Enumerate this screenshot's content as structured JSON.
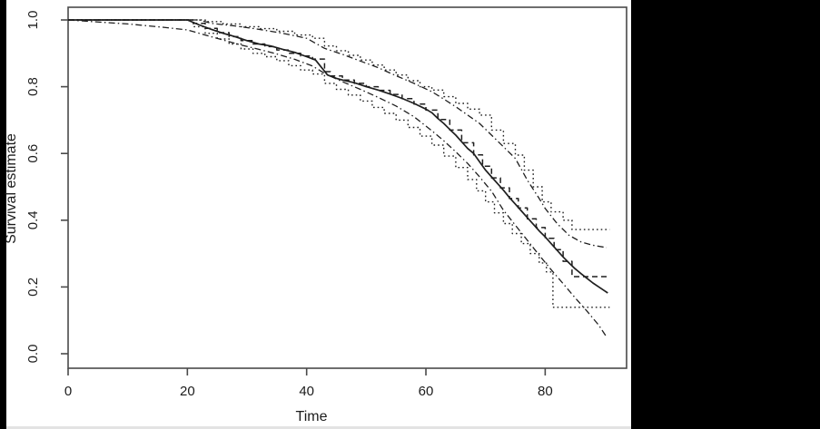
{
  "figure": {
    "background": "#ffffff",
    "left_bar_color": "#000000",
    "right_panel_color": "#000000",
    "line_color": "#1f1f1f",
    "box_color": "#4a4a4a"
  },
  "chart_data": {
    "type": "line",
    "title": "",
    "xlabel": "Time",
    "ylabel": "Survival estimate",
    "xlim": [
      0,
      93.6
    ],
    "ylim": [
      -0.04,
      1.04
    ],
    "grid": false,
    "legend": "none",
    "x_ticks": [
      {
        "value": 0,
        "label": "0"
      },
      {
        "value": 20,
        "label": "20"
      },
      {
        "value": 40,
        "label": "40"
      },
      {
        "value": 60,
        "label": "60"
      },
      {
        "value": 80,
        "label": "80"
      }
    ],
    "y_ticks": [
      {
        "value": 1.0,
        "label": "1.0"
      },
      {
        "value": 0.8,
        "label": "0.8"
      },
      {
        "value": 0.6,
        "label": "0.6"
      },
      {
        "value": 0.4,
        "label": "0.4"
      },
      {
        "value": 0.2,
        "label": "0.2"
      },
      {
        "value": 0.0,
        "label": "0.0"
      }
    ],
    "series": [
      {
        "name": "survival-estimate-smooth",
        "linetype": "solid",
        "interpolation": "linear",
        "points": [
          [
            0,
            1
          ],
          [
            20,
            1
          ],
          [
            22,
            0.985
          ],
          [
            24,
            0.972
          ],
          [
            26,
            0.96
          ],
          [
            28,
            0.95
          ],
          [
            30,
            0.938
          ],
          [
            32,
            0.928
          ],
          [
            34,
            0.922
          ],
          [
            36,
            0.912
          ],
          [
            38,
            0.903
          ],
          [
            40,
            0.89
          ],
          [
            41.5,
            0.88
          ],
          [
            43.5,
            0.835
          ],
          [
            45,
            0.825
          ],
          [
            46,
            0.82
          ],
          [
            48,
            0.812
          ],
          [
            50,
            0.8
          ],
          [
            52,
            0.79
          ],
          [
            54,
            0.778
          ],
          [
            56,
            0.765
          ],
          [
            58,
            0.75
          ],
          [
            60,
            0.733
          ],
          [
            61,
            0.722
          ],
          [
            62,
            0.705
          ],
          [
            63,
            0.69
          ],
          [
            64,
            0.672
          ],
          [
            65,
            0.655
          ],
          [
            66,
            0.635
          ],
          [
            67,
            0.615
          ],
          [
            68,
            0.6
          ],
          [
            69,
            0.575
          ],
          [
            70,
            0.55
          ],
          [
            71,
            0.53
          ],
          [
            72,
            0.51
          ],
          [
            73,
            0.49
          ],
          [
            74,
            0.468
          ],
          [
            75,
            0.448
          ],
          [
            76,
            0.428
          ],
          [
            77,
            0.408
          ],
          [
            78,
            0.388
          ],
          [
            79,
            0.368
          ],
          [
            80,
            0.35
          ],
          [
            81,
            0.33
          ],
          [
            82,
            0.31
          ],
          [
            83,
            0.29
          ],
          [
            84,
            0.272
          ],
          [
            85,
            0.255
          ],
          [
            86,
            0.24
          ],
          [
            87,
            0.226
          ],
          [
            88,
            0.212
          ],
          [
            89,
            0.2
          ],
          [
            90,
            0.188
          ],
          [
            90.5,
            0.182
          ]
        ]
      },
      {
        "name": "survival-estimate-step",
        "linetype": "dashed",
        "interpolation": "step",
        "points": [
          [
            0,
            1
          ],
          [
            21,
            0.99
          ],
          [
            23,
            0.975
          ],
          [
            25,
            0.962
          ],
          [
            27,
            0.95
          ],
          [
            29,
            0.938
          ],
          [
            31,
            0.928
          ],
          [
            33,
            0.92
          ],
          [
            35,
            0.91
          ],
          [
            37,
            0.9
          ],
          [
            39,
            0.892
          ],
          [
            41,
            0.883
          ],
          [
            43,
            0.845
          ],
          [
            44,
            0.832
          ],
          [
            46,
            0.82
          ],
          [
            48,
            0.81
          ],
          [
            50,
            0.8
          ],
          [
            52,
            0.789
          ],
          [
            54,
            0.777
          ],
          [
            56,
            0.764
          ],
          [
            58,
            0.748
          ],
          [
            60,
            0.73
          ],
          [
            62,
            0.702
          ],
          [
            64,
            0.67
          ],
          [
            66,
            0.632
          ],
          [
            68,
            0.596
          ],
          [
            69.5,
            0.562
          ],
          [
            71,
            0.527
          ],
          [
            72.5,
            0.497
          ],
          [
            74,
            0.465
          ],
          [
            75.5,
            0.437
          ],
          [
            77,
            0.404
          ],
          [
            78.5,
            0.378
          ],
          [
            80,
            0.346
          ],
          [
            81.5,
            0.312
          ],
          [
            83,
            0.277
          ],
          [
            84.5,
            0.231
          ],
          [
            90.5,
            0.231
          ]
        ]
      },
      {
        "name": "ci-upper-step",
        "linetype": "dotted",
        "interpolation": "step",
        "points": [
          [
            0,
            1
          ],
          [
            23,
            0.995
          ],
          [
            26,
            0.988
          ],
          [
            29,
            0.98
          ],
          [
            32,
            0.974
          ],
          [
            35,
            0.966
          ],
          [
            38,
            0.955
          ],
          [
            41,
            0.945
          ],
          [
            43,
            0.922
          ],
          [
            45,
            0.908
          ],
          [
            47,
            0.894
          ],
          [
            49,
            0.88
          ],
          [
            51,
            0.865
          ],
          [
            53,
            0.85
          ],
          [
            55,
            0.835
          ],
          [
            57,
            0.818
          ],
          [
            59,
            0.8
          ],
          [
            61,
            0.79
          ],
          [
            63,
            0.77
          ],
          [
            65,
            0.75
          ],
          [
            67,
            0.733
          ],
          [
            69,
            0.715
          ],
          [
            71,
            0.67
          ],
          [
            73,
            0.63
          ],
          [
            75,
            0.595
          ],
          [
            76.5,
            0.55
          ],
          [
            78,
            0.5
          ],
          [
            79.5,
            0.455
          ],
          [
            81,
            0.425
          ],
          [
            83,
            0.4
          ],
          [
            84.5,
            0.372
          ],
          [
            90.8,
            0.372
          ]
        ]
      },
      {
        "name": "ci-lower-step",
        "linetype": "dotted",
        "interpolation": "step",
        "points": [
          [
            0,
            1
          ],
          [
            21,
            0.98
          ],
          [
            23,
            0.96
          ],
          [
            25,
            0.943
          ],
          [
            27,
            0.928
          ],
          [
            29,
            0.913
          ],
          [
            31,
            0.9
          ],
          [
            33,
            0.89
          ],
          [
            35,
            0.878
          ],
          [
            37,
            0.863
          ],
          [
            39,
            0.85
          ],
          [
            41,
            0.838
          ],
          [
            43,
            0.81
          ],
          [
            45,
            0.792
          ],
          [
            47,
            0.775
          ],
          [
            49,
            0.757
          ],
          [
            51,
            0.738
          ],
          [
            53,
            0.72
          ],
          [
            55,
            0.7
          ],
          [
            57,
            0.678
          ],
          [
            59,
            0.652
          ],
          [
            61,
            0.625
          ],
          [
            63,
            0.592
          ],
          [
            65,
            0.558
          ],
          [
            67,
            0.522
          ],
          [
            68.5,
            0.488
          ],
          [
            70,
            0.455
          ],
          [
            71.5,
            0.422
          ],
          [
            73,
            0.39
          ],
          [
            74.5,
            0.36
          ],
          [
            76,
            0.33
          ],
          [
            77.5,
            0.3
          ],
          [
            79,
            0.272
          ],
          [
            80.2,
            0.245
          ],
          [
            81.3,
            0.139
          ],
          [
            90.8,
            0.139
          ]
        ]
      },
      {
        "name": "ci-upper-smooth",
        "linetype": "dashdot",
        "interpolation": "linear",
        "points": [
          [
            0,
            1
          ],
          [
            22,
            1
          ],
          [
            24,
            0.99
          ],
          [
            28,
            0.982
          ],
          [
            32,
            0.972
          ],
          [
            36,
            0.96
          ],
          [
            40,
            0.945
          ],
          [
            43,
            0.915
          ],
          [
            46,
            0.897
          ],
          [
            49,
            0.877
          ],
          [
            52,
            0.857
          ],
          [
            55,
            0.833
          ],
          [
            58,
            0.81
          ],
          [
            61,
            0.785
          ],
          [
            63,
            0.763
          ],
          [
            65,
            0.74
          ],
          [
            67,
            0.715
          ],
          [
            69,
            0.69
          ],
          [
            71,
            0.655
          ],
          [
            73,
            0.62
          ],
          [
            75,
            0.585
          ],
          [
            77,
            0.52
          ],
          [
            79,
            0.465
          ],
          [
            80,
            0.435
          ],
          [
            82,
            0.39
          ],
          [
            84,
            0.355
          ],
          [
            86,
            0.335
          ],
          [
            88,
            0.325
          ],
          [
            90.3,
            0.318
          ]
        ]
      },
      {
        "name": "ci-lower-smooth",
        "linetype": "dashdot",
        "interpolation": "linear",
        "points": [
          [
            0,
            1
          ],
          [
            4,
            0.995
          ],
          [
            10,
            0.988
          ],
          [
            16,
            0.978
          ],
          [
            20,
            0.97
          ],
          [
            23,
            0.955
          ],
          [
            26,
            0.94
          ],
          [
            29,
            0.925
          ],
          [
            32,
            0.912
          ],
          [
            35,
            0.898
          ],
          [
            38,
            0.882
          ],
          [
            41,
            0.862
          ],
          [
            43,
            0.84
          ],
          [
            46,
            0.815
          ],
          [
            49,
            0.792
          ],
          [
            52,
            0.768
          ],
          [
            55,
            0.742
          ],
          [
            58,
            0.71
          ],
          [
            61,
            0.668
          ],
          [
            63,
            0.638
          ],
          [
            65,
            0.605
          ],
          [
            67,
            0.57
          ],
          [
            69,
            0.53
          ],
          [
            71,
            0.487
          ],
          [
            73,
            0.43
          ],
          [
            75,
            0.385
          ],
          [
            77,
            0.34
          ],
          [
            79,
            0.295
          ],
          [
            81,
            0.252
          ],
          [
            83,
            0.21
          ],
          [
            85,
            0.168
          ],
          [
            87,
            0.128
          ],
          [
            89,
            0.085
          ],
          [
            90.3,
            0.05
          ]
        ]
      }
    ]
  }
}
